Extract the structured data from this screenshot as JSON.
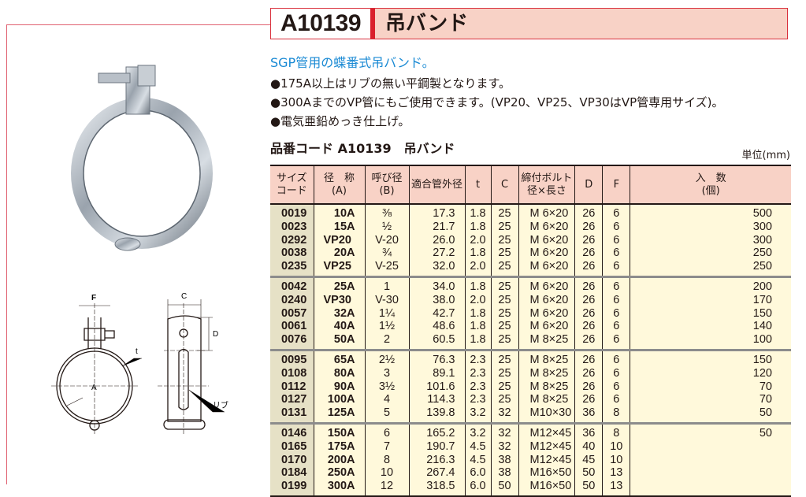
{
  "header": {
    "code": "A10139",
    "name": "吊バンド"
  },
  "subtitle": "SGP管用の蝶番式吊バンド。",
  "bullets": [
    "●175A以上はリブの無い平鋼製となります。",
    "●300AまでのVP管にもご使用できます。(VP20、VP25、VP30はVP管専用サイズ)。",
    "●電気亜鉛めっき仕上げ。"
  ],
  "table_title": "品番コード A10139　吊バンド",
  "unit": "単位(mm)",
  "colors": {
    "title_red": "#d9202c",
    "header_pink": "#f8d2c6",
    "subtitle_blue": "#1a8ad4",
    "cell_cream": "#fff9db",
    "code_col": "#e6e1c6"
  },
  "drawing_labels": {
    "f": "F",
    "c": "C",
    "d": "D",
    "t": "t",
    "a": "A",
    "rib": "リブ"
  },
  "columns": [
    {
      "l1": "サイズ",
      "l2": "コード"
    },
    {
      "l1": "径　称",
      "l2": "(A)"
    },
    {
      "l1": "呼び径",
      "l2": "(B)"
    },
    {
      "l1": "適合管外径",
      "l2": ""
    },
    {
      "l1": "t",
      "l2": ""
    },
    {
      "l1": "C",
      "l2": ""
    },
    {
      "l1": "締付ボルト",
      "l2": "径×長さ"
    },
    {
      "l1": "D",
      "l2": ""
    },
    {
      "l1": "F",
      "l2": ""
    },
    {
      "l1": "入　数",
      "l2": "(個)"
    }
  ],
  "groups": [
    [
      [
        "0019",
        "10A",
        "⅜",
        "17.3",
        "1.8",
        "25",
        "M 6×20",
        "26",
        "6",
        "500"
      ],
      [
        "0023",
        "15A",
        "½",
        "21.7",
        "1.8",
        "25",
        "M 6×20",
        "26",
        "6",
        "300"
      ],
      [
        "0292",
        "VP20",
        "V-20",
        "26.0",
        "2.0",
        "25",
        "M 6×20",
        "26",
        "6",
        "300"
      ],
      [
        "0038",
        "20A",
        "¾",
        "27.2",
        "1.8",
        "25",
        "M 6×20",
        "26",
        "6",
        "250"
      ],
      [
        "0235",
        "VP25",
        "V-25",
        "32.0",
        "2.0",
        "25",
        "M 6×20",
        "26",
        "6",
        "250"
      ]
    ],
    [
      [
        "0042",
        "25A",
        "1",
        "34.0",
        "1.8",
        "25",
        "M 6×20",
        "26",
        "6",
        "200"
      ],
      [
        "0240",
        "VP30",
        "V-30",
        "38.0",
        "2.0",
        "25",
        "M 6×20",
        "26",
        "6",
        "170"
      ],
      [
        "0057",
        "32A",
        "1¼",
        "42.7",
        "1.8",
        "25",
        "M 6×20",
        "26",
        "6",
        "150"
      ],
      [
        "0061",
        "40A",
        "1½",
        "48.6",
        "1.8",
        "25",
        "M 6×20",
        "26",
        "6",
        "140"
      ],
      [
        "0076",
        "50A",
        "2",
        "60.5",
        "1.8",
        "25",
        "M 8×25",
        "26",
        "6",
        "100"
      ]
    ],
    [
      [
        "0095",
        "65A",
        "2½",
        "76.3",
        "2.3",
        "25",
        "M 8×25",
        "26",
        "6",
        "150"
      ],
      [
        "0108",
        "80A",
        "3",
        "89.1",
        "2.3",
        "25",
        "M 8×25",
        "26",
        "6",
        "120"
      ],
      [
        "0112",
        "90A",
        "3½",
        "101.6",
        "2.3",
        "25",
        "M 8×25",
        "26",
        "6",
        "70"
      ],
      [
        "0127",
        "100A",
        "4",
        "114.3",
        "2.3",
        "25",
        "M 8×25",
        "26",
        "6",
        "70"
      ],
      [
        "0131",
        "125A",
        "5",
        "139.8",
        "3.2",
        "32",
        "M10×30",
        "36",
        "8",
        "50"
      ]
    ],
    [
      [
        "0146",
        "150A",
        "6",
        "165.2",
        "3.2",
        "32",
        "M12×45",
        "36",
        "8",
        "50"
      ],
      [
        "0165",
        "175A",
        "7",
        "190.7",
        "4.5",
        "32",
        "M12×45",
        "40",
        "10",
        ""
      ],
      [
        "0170",
        "200A",
        "8",
        "216.3",
        "4.5",
        "38",
        "M12×45",
        "45",
        "10",
        ""
      ],
      [
        "0184",
        "250A",
        "10",
        "267.4",
        "6.0",
        "38",
        "M16×50",
        "50",
        "13",
        ""
      ],
      [
        "0199",
        "300A",
        "12",
        "318.5",
        "6.0",
        "50",
        "M16×50",
        "50",
        "13",
        ""
      ]
    ]
  ]
}
